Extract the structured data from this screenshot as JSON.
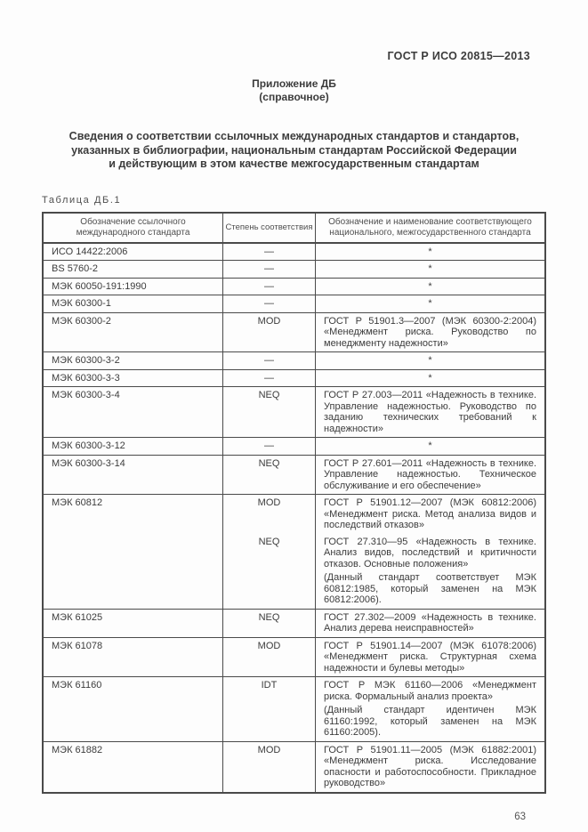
{
  "page": {
    "doc_code": "ГОСТ Р ИСО 20815—2013",
    "appendix_title": "Приложение ДБ",
    "appendix_subtitle": "(справочное)",
    "title_lines": [
      "Сведения о соответствии ссылочных международных стандартов и стандартов,",
      "указанных в библиографии, национальным стандартам Российской Федерации",
      "и действующим в этом качестве межгосударственным стандартам"
    ],
    "table_label": "Таблица ДБ.1",
    "page_number": "63"
  },
  "colors": {
    "text": "#3c3c3c",
    "border": "#4a4a4a",
    "background": "#fdfdfd"
  },
  "table": {
    "headers": [
      "Обозначение ссылочного международного стандарта",
      "Степень соответствия",
      "Обозначение и наименование соответствующего национального, межгосударственного стандарта"
    ],
    "rows": [
      {
        "ref": "ИСО 14422:2006",
        "entries": [
          {
            "degree": "—",
            "center": true,
            "paragraphs": [
              "*"
            ]
          }
        ]
      },
      {
        "ref": "BS 5760-2",
        "entries": [
          {
            "degree": "—",
            "center": true,
            "paragraphs": [
              "*"
            ]
          }
        ]
      },
      {
        "ref": "МЭК 60050-191:1990",
        "entries": [
          {
            "degree": "—",
            "center": true,
            "paragraphs": [
              "*"
            ]
          }
        ]
      },
      {
        "ref": "МЭК 60300-1",
        "entries": [
          {
            "degree": "—",
            "center": true,
            "paragraphs": [
              "*"
            ]
          }
        ]
      },
      {
        "ref": "МЭК 60300-2",
        "entries": [
          {
            "degree": "MOD",
            "paragraphs": [
              "ГОСТ Р 51901.3—2007 (МЭК 60300-2:2004) «Менеджмент риска. Руководство по менеджменту надежности»"
            ]
          }
        ]
      },
      {
        "ref": "МЭК 60300-3-2",
        "entries": [
          {
            "degree": "—",
            "center": true,
            "paragraphs": [
              "*"
            ]
          }
        ]
      },
      {
        "ref": "МЭК 60300-3-3",
        "entries": [
          {
            "degree": "—",
            "center": true,
            "paragraphs": [
              "*"
            ]
          }
        ]
      },
      {
        "ref": "МЭК 60300-3-4",
        "entries": [
          {
            "degree": "NEQ",
            "paragraphs": [
              "ГОСТ Р 27.003—2011 «Надежность в технике. Управление надежностью. Руководство по заданию технических требований к надежности»"
            ]
          }
        ]
      },
      {
        "ref": "МЭК 60300-3-12",
        "entries": [
          {
            "degree": "—",
            "center": true,
            "paragraphs": [
              "*"
            ]
          }
        ]
      },
      {
        "ref": "МЭК 60300-3-14",
        "entries": [
          {
            "degree": "NEQ",
            "paragraphs": [
              "ГОСТ Р 27.601—2011 «Надежность в технике. Управление надежностью. Техническое обслуживание и его обеспечение»"
            ]
          }
        ]
      },
      {
        "ref": "МЭК 60812",
        "entries": [
          {
            "degree": "MOD",
            "paragraphs": [
              "ГОСТ Р 51901.12—2007 (МЭК 60812:2006) «Менеджмент риска. Метод анализа видов и последствий отказов»"
            ]
          },
          {
            "degree": "NEQ",
            "paragraphs": [
              "ГОСТ 27.310—95 «Надежность в технике. Анализ видов, последствий и критичности отказов. Основные положения»",
              "(Данный стандарт соответствует МЭК 60812:1985, который заменен на МЭК 60812:2006)."
            ]
          }
        ]
      },
      {
        "ref": "МЭК 61025",
        "entries": [
          {
            "degree": "NEQ",
            "paragraphs": [
              "ГОСТ 27.302—2009 «Надежность в технике. Анализ дерева неисправностей»"
            ]
          }
        ]
      },
      {
        "ref": "МЭК 61078",
        "entries": [
          {
            "degree": "MOD",
            "paragraphs": [
              "ГОСТ Р 51901.14—2007 (МЭК 61078:2006) «Менеджмент риска. Структурная схема надежности и булевы методы»"
            ]
          }
        ]
      },
      {
        "ref": "МЭК 61160",
        "entries": [
          {
            "degree": "IDT",
            "paragraphs": [
              "ГОСТ Р МЭК 61160—2006 «Менеджмент риска. Формальный анализ проекта»",
              "(Данный стандарт идентичен МЭК 61160:1992, который заменен на МЭК 61160:2005)."
            ]
          }
        ]
      },
      {
        "ref": "МЭК 61882",
        "entries": [
          {
            "degree": "MOD",
            "paragraphs": [
              "ГОСТ Р 51901.11—2005 (МЭК 61882:2001) «Менеджмент риска. Исследование опасности и работоспособности. Прикладное руководство»"
            ]
          }
        ]
      }
    ]
  }
}
